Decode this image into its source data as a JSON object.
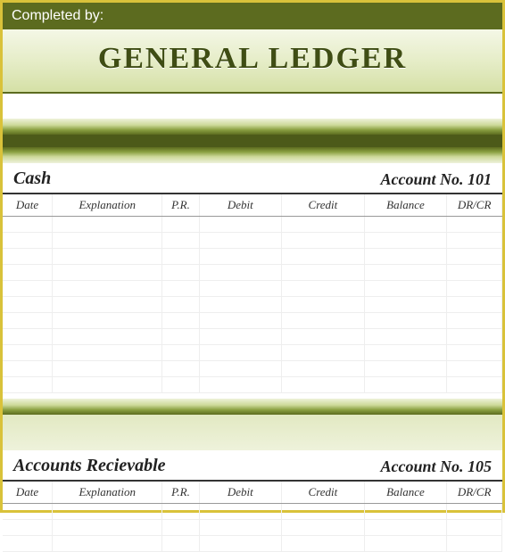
{
  "header": {
    "completed_label": "Completed by:",
    "title": "GENERAL LEDGER"
  },
  "styling": {
    "border_color": "#d9c23a",
    "header_bar_color": "#5c6b1f",
    "title_text_color": "#3f4d14",
    "title_fontsize": 34,
    "dark_bar_color": "#4c5a19",
    "gradient_top": "#eef2db",
    "gradient_bottom": "#5c6b1f",
    "grid_color": "#eeeeee"
  },
  "columns": {
    "date": "Date",
    "explanation": "Explanation",
    "pr": "P.R.",
    "debit": "Debit",
    "credit": "Credit",
    "balance": "Balance",
    "drcr": "DR/CR"
  },
  "sections": [
    {
      "name": "Cash",
      "account_label": "Account No. 101",
      "blank_rows": 11
    },
    {
      "name": "Accounts Recievable",
      "account_label": "Account No. 105",
      "blank_rows": 3
    }
  ]
}
